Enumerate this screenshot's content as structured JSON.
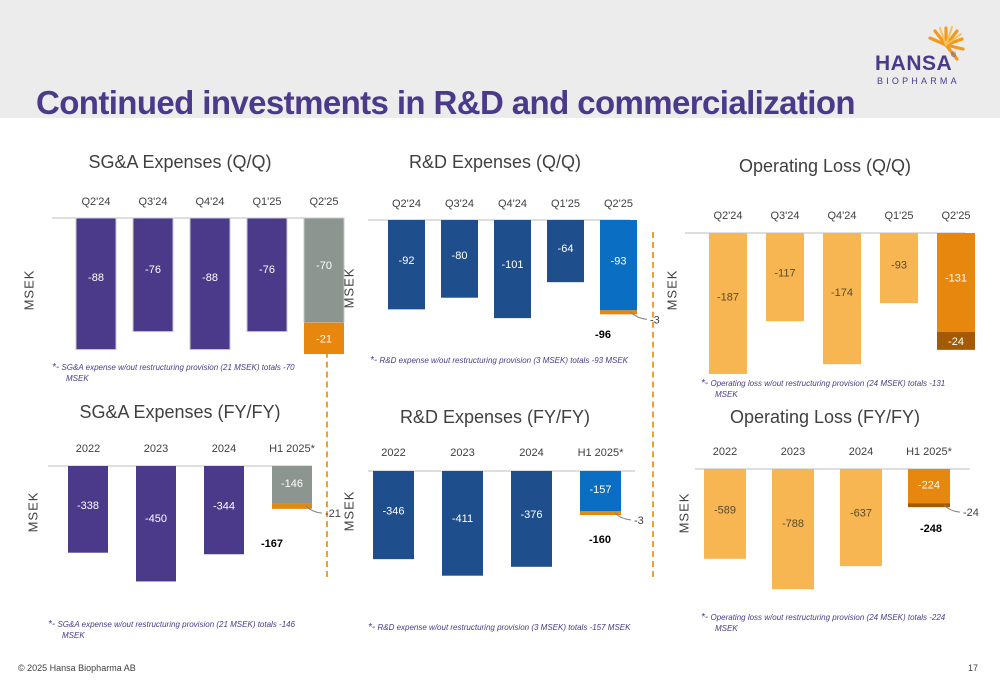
{
  "slide": {
    "title": "Continued investments in R&D and commercialization",
    "footer": "© 2025 Hansa Biopharma AB",
    "page_number": "17"
  },
  "logo": {
    "word": "HANSA",
    "sub": "BIOPHARMA",
    "mark": "®"
  },
  "colors": {
    "title": "#4b3a8a",
    "purple": "#4b3a8a",
    "blue": "#1f4e8c",
    "blue_light": "#0a6fc2",
    "orange_light": "#f8b653",
    "orange_dark": "#e8870d",
    "gray": "#8c9590",
    "brown": "#a35a00",
    "divider": "#f0a030"
  },
  "chart_data": [
    {
      "id": "sga-q",
      "type": "bar",
      "title": "SG&A Expenses (Q/Q)",
      "ylabel": "MSEK",
      "categories": [
        "Q2'24",
        "Q3'24",
        "Q4'24",
        "Q1'25",
        "Q2'25"
      ],
      "values": [
        -88,
        -76,
        -88,
        -76,
        -70
      ],
      "value_labels": [
        "-88",
        "-76",
        "-88",
        "-76",
        "-70"
      ],
      "extra": {
        "index": 4,
        "value": -21,
        "label": "-21"
      },
      "note": [
        "SG&A expense w/out restructuring provision (21 MSEK) totals -70",
        "MSEK"
      ],
      "note_mark": "*-"
    },
    {
      "id": "rd-q",
      "type": "bar",
      "title": "R&D Expenses (Q/Q)",
      "ylabel": "MSEK",
      "categories": [
        "Q2'24",
        "Q3'24",
        "Q4'24",
        "Q1'25",
        "Q2'25"
      ],
      "values": [
        -92,
        -80,
        -101,
        -64,
        -93
      ],
      "value_labels": [
        "-92",
        "-80",
        "-101",
        "-64",
        "-93"
      ],
      "extra": {
        "index": 4,
        "value": -3,
        "label": "-3"
      },
      "total_label": "-96",
      "note": [
        "R&D expense w/out restructuring provision (3 MSEK) totals -93 MSEK"
      ],
      "note_mark": "*-"
    },
    {
      "id": "ol-q",
      "type": "bar",
      "title": "Operating Loss (Q/Q)",
      "ylabel": "MSEK",
      "categories": [
        "Q2'24",
        "Q3'24",
        "Q4'24",
        "Q1'25",
        "Q2'25"
      ],
      "values": [
        -187,
        -117,
        -174,
        -93,
        -131
      ],
      "value_labels": [
        "-187",
        "-117",
        "-174",
        "-93",
        "-131"
      ],
      "extra": {
        "index": 4,
        "value": -24,
        "label": "-24"
      },
      "note": [
        "Operating loss w/out restructuring provision (24 MSEK) totals -131",
        "MSEK"
      ],
      "note_mark": "*-"
    },
    {
      "id": "sga-fy",
      "type": "bar",
      "title": "SG&A Expenses (FY/FY)",
      "ylabel": "MSEK",
      "categories": [
        "2022",
        "2023",
        "2024",
        "H1 2025*"
      ],
      "values": [
        -338,
        -450,
        -344,
        -146
      ],
      "value_labels": [
        "-338",
        "-450",
        "-344",
        "-146"
      ],
      "extra": {
        "index": 3,
        "value": -21,
        "label": "-21"
      },
      "total_label": "-167",
      "note": [
        "SG&A expense w/out restructuring provision (21 MSEK) totals -146",
        "MSEK"
      ],
      "note_mark": "*-"
    },
    {
      "id": "rd-fy",
      "type": "bar",
      "title": "R&D Expenses (FY/FY)",
      "ylabel": "MSEK",
      "categories": [
        "2022",
        "2023",
        "2024",
        "H1 2025*"
      ],
      "values": [
        -346,
        -411,
        -376,
        -157
      ],
      "value_labels": [
        "-346",
        "-411",
        "-376",
        "-157"
      ],
      "extra": {
        "index": 3,
        "value": -3,
        "label": "-3"
      },
      "total_label": "-160",
      "note": [
        "R&D expense w/out restructuring provision (3 MSEK) totals -157 MSEK"
      ],
      "note_mark": "*-"
    },
    {
      "id": "ol-fy",
      "type": "bar",
      "title": "Operating Loss (FY/FY)",
      "ylabel": "MSEK",
      "categories": [
        "2022",
        "2023",
        "2024",
        "H1 2025*"
      ],
      "values": [
        -589,
        -788,
        -637,
        -224
      ],
      "value_labels": [
        "-589",
        "-788",
        "-637",
        "-224"
      ],
      "extra": {
        "index": 3,
        "value": -24,
        "label": "-24"
      },
      "total_label": "-248",
      "note": [
        "Operating loss w/out restructuring provision (24 MSEK) totals -224",
        "MSEK"
      ],
      "note_mark": "*-"
    }
  ]
}
